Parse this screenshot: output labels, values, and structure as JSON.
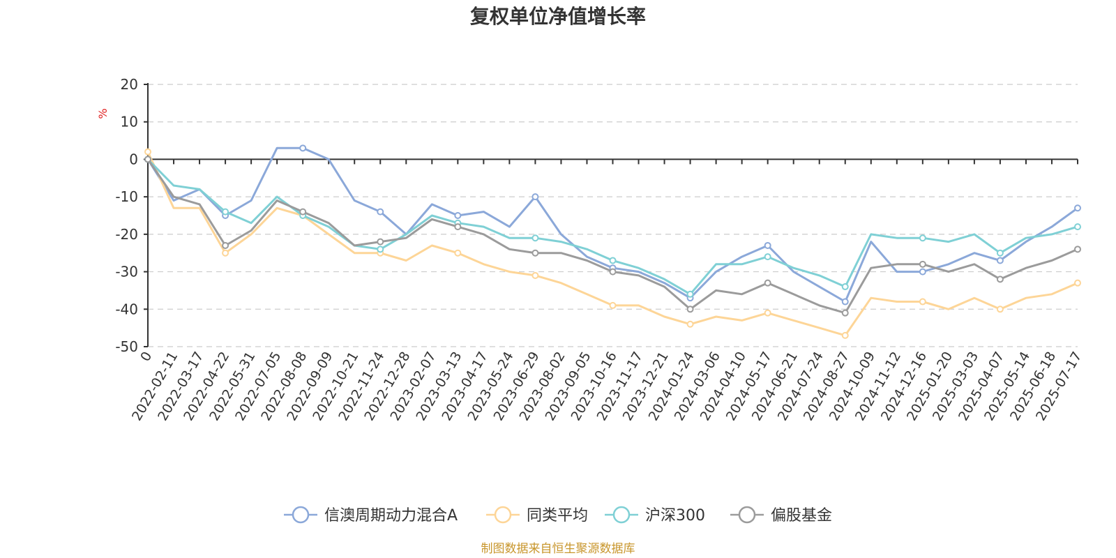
{
  "chart_data": {
    "type": "line",
    "title": "复权单位净值增长率",
    "ylabel": "%",
    "ylim": [
      -50,
      20
    ],
    "yticks": [
      20,
      10,
      0,
      -10,
      -20,
      -30,
      -40,
      -50
    ],
    "grid": true,
    "legend_position": "bottom",
    "source_note": "制图数据来自恒生聚源数据库",
    "x": [
      "0",
      "2022-02-11",
      "2022-03-17",
      "2022-04-22",
      "2022-05-31",
      "2022-07-05",
      "2022-08-08",
      "2022-09-09",
      "2022-10-21",
      "2022-11-24",
      "2022-12-28",
      "2023-02-07",
      "2023-03-13",
      "2023-04-17",
      "2023-05-24",
      "2023-06-29",
      "2023-08-02",
      "2023-09-05",
      "2023-10-16",
      "2023-11-17",
      "2023-12-21",
      "2024-01-24",
      "2024-03-06",
      "2024-04-10",
      "2024-05-17",
      "2024-06-21",
      "2024-07-24",
      "2024-08-27",
      "2024-10-09",
      "2024-11-12",
      "2024-12-16",
      "2025-01-20",
      "2025-03-03",
      "2025-04-07",
      "2025-05-14",
      "2025-06-18",
      "2025-07-17"
    ],
    "series": [
      {
        "name": "信澳周期动力混合A",
        "color": "#8ba8d9",
        "values": [
          0,
          -11,
          -8,
          -15,
          -11,
          3,
          3,
          0,
          -11,
          -14,
          -20,
          -12,
          -15,
          -14,
          -18,
          -10,
          -20,
          -26,
          -29,
          -30,
          -33,
          -37,
          -30,
          -26,
          -23,
          -30,
          -34,
          -38,
          -22,
          -30,
          -30,
          -28,
          -25,
          -27,
          -22,
          -18,
          -13
        ]
      },
      {
        "name": "同类平均",
        "color": "#fdd597",
        "values": [
          2,
          -13,
          -13,
          -25,
          -20,
          -13,
          -15,
          -20,
          -25,
          -25,
          -27,
          -23,
          -25,
          -28,
          -30,
          -31,
          -33,
          -36,
          -39,
          -39,
          -42,
          -44,
          -42,
          -43,
          -41,
          -43,
          -45,
          -47,
          -37,
          -38,
          -38,
          -40,
          -37,
          -40,
          -37,
          -36,
          -33
        ]
      },
      {
        "name": "沪深300",
        "color": "#7fd0d5",
        "values": [
          0,
          -7,
          -8,
          -14,
          -17,
          -10,
          -15,
          -18,
          -23,
          -24,
          -20,
          -15,
          -17,
          -18,
          -21,
          -21,
          -22,
          -24,
          -27,
          -29,
          -32,
          -36,
          -28,
          -28,
          -26,
          -29,
          -31,
          -34,
          -20,
          -21,
          -21,
          -22,
          -20,
          -25,
          -21,
          -20,
          -18
        ]
      },
      {
        "name": "偏股基金",
        "color": "#9b9b9b",
        "values": [
          0,
          -10,
          -12,
          -23,
          -19,
          -11,
          -14,
          -17,
          -23,
          -22,
          -21,
          -16,
          -18,
          -20,
          -24,
          -25,
          -25,
          -27,
          -30,
          -31,
          -34,
          -40,
          -35,
          -36,
          -33,
          -36,
          -39,
          -41,
          -29,
          -28,
          -28,
          -30,
          -28,
          -32,
          -29,
          -27,
          -24
        ]
      }
    ]
  }
}
